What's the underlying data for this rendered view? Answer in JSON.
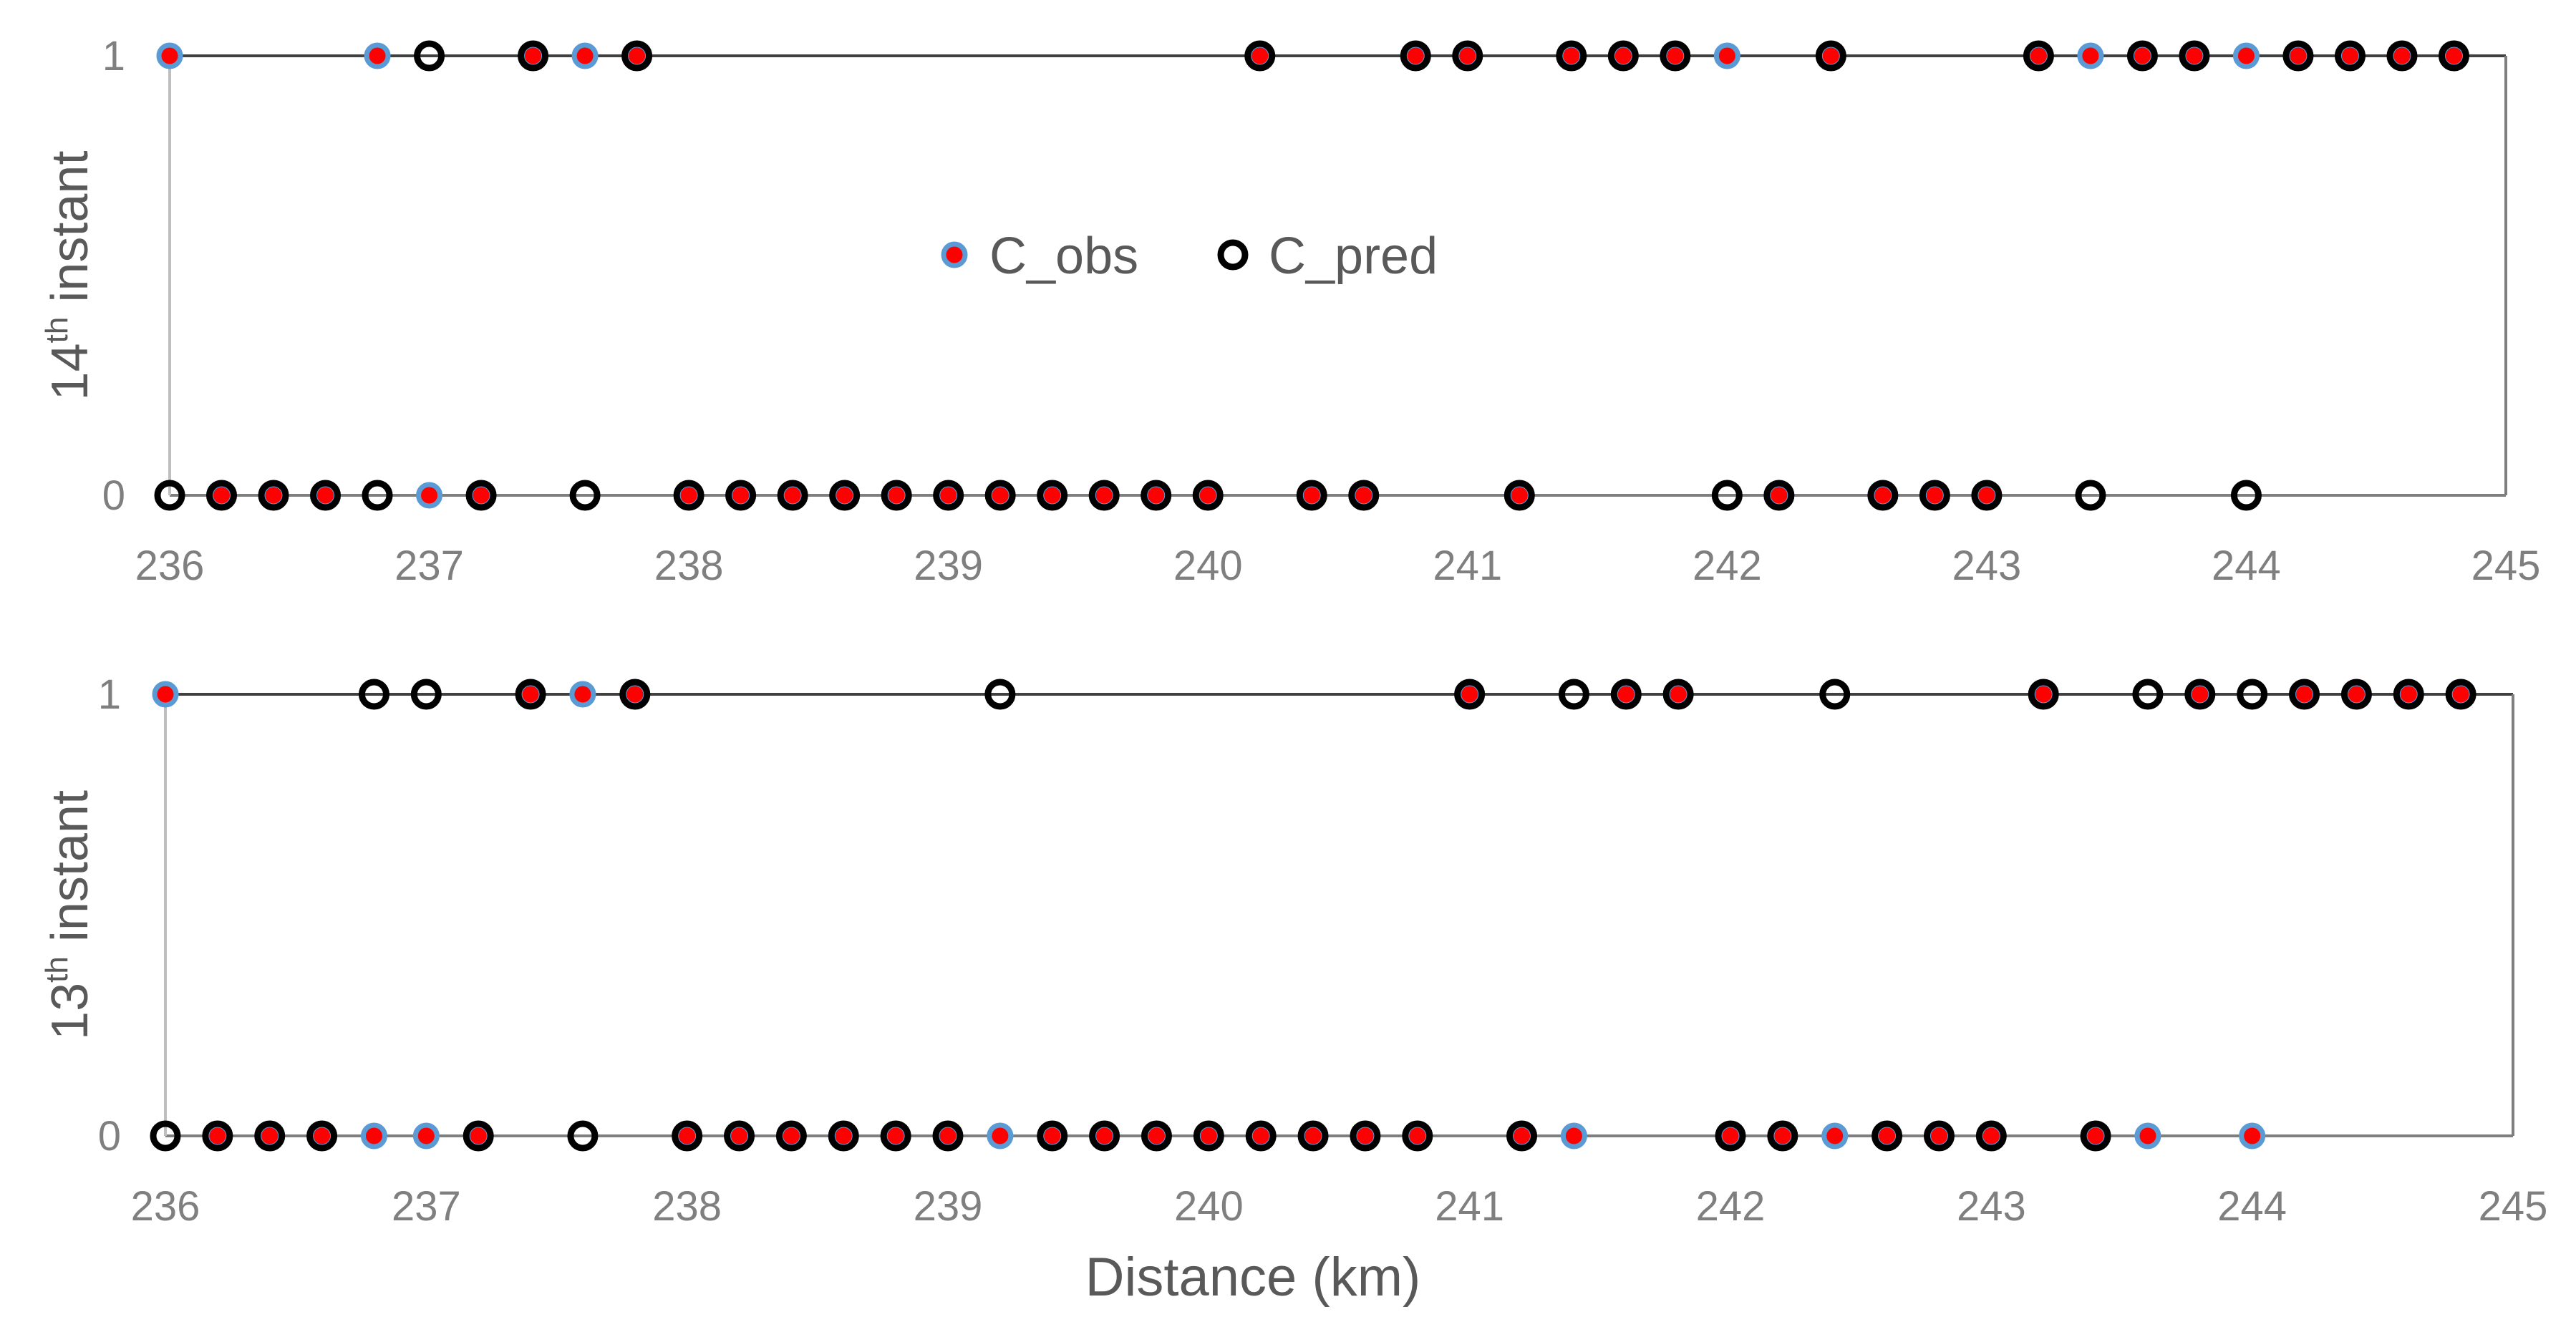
{
  "chart_data": [
    {
      "type": "scatter",
      "ylabel": {
        "prefix": "14",
        "sup": "th",
        "suffix": " instant"
      },
      "xlabel": "",
      "xlim": [
        236,
        245
      ],
      "ylim": [
        0,
        1
      ],
      "x_ticks": [
        "236",
        "237",
        "238",
        "239",
        "240",
        "241",
        "242",
        "243",
        "244",
        "245"
      ],
      "y_ticks": [
        "0",
        "1"
      ],
      "grid": false,
      "legend": {
        "position": "center",
        "entries": [
          "C_obs",
          "C_pred"
        ]
      },
      "series": [
        {
          "name": "C_obs",
          "x": [
            236.0,
            236.2,
            236.4,
            236.6,
            236.8,
            237.0,
            237.2,
            237.4,
            237.6,
            237.8,
            238.0,
            238.2,
            238.4,
            238.6,
            238.8,
            239.0,
            239.2,
            239.4,
            239.6,
            239.8,
            240.0,
            240.2,
            240.4,
            240.6,
            240.8,
            241.0,
            241.2,
            241.4,
            241.6,
            241.8,
            242.0,
            242.2,
            242.4,
            242.6,
            242.8,
            243.0,
            243.2,
            243.4,
            243.6,
            243.8,
            244.0,
            244.2,
            244.4,
            244.6,
            244.8
          ],
          "y": [
            1,
            0,
            0,
            0,
            1,
            0,
            0,
            1,
            1,
            1,
            0,
            0,
            0,
            0,
            0,
            0,
            0,
            0,
            0,
            0,
            0,
            1,
            0,
            0,
            1,
            1,
            0,
            1,
            1,
            1,
            1,
            0,
            1,
            0,
            0,
            0,
            1,
            1,
            1,
            1,
            1,
            1,
            1,
            1,
            1
          ]
        },
        {
          "name": "C_pred",
          "x": [
            236.0,
            236.2,
            236.4,
            236.6,
            236.8,
            237.0,
            237.2,
            237.4,
            237.6,
            237.8,
            238.0,
            238.2,
            238.4,
            238.6,
            238.8,
            239.0,
            239.2,
            239.4,
            239.6,
            239.8,
            240.0,
            240.2,
            240.4,
            240.6,
            240.8,
            241.0,
            241.2,
            241.4,
            241.6,
            241.8,
            242.0,
            242.2,
            242.4,
            242.6,
            242.8,
            243.0,
            243.2,
            243.4,
            243.6,
            243.8,
            244.0,
            244.2,
            244.4,
            244.6,
            244.8
          ],
          "y": [
            0,
            0,
            0,
            0,
            0,
            1,
            0,
            1,
            0,
            1,
            0,
            0,
            0,
            0,
            0,
            0,
            0,
            0,
            0,
            0,
            0,
            1,
            0,
            0,
            1,
            1,
            0,
            1,
            1,
            1,
            0,
            0,
            1,
            0,
            0,
            0,
            1,
            0,
            1,
            1,
            0,
            1,
            1,
            1,
            1
          ]
        }
      ]
    },
    {
      "type": "scatter",
      "ylabel": {
        "prefix": "13",
        "sup": "th",
        "suffix": " instant"
      },
      "xlabel": "Distance (km)",
      "xlim": [
        236,
        245
      ],
      "ylim": [
        0,
        1
      ],
      "x_ticks": [
        "236",
        "237",
        "238",
        "239",
        "240",
        "241",
        "242",
        "243",
        "244",
        "245"
      ],
      "y_ticks": [
        "0",
        "1"
      ],
      "grid": false,
      "series": [
        {
          "name": "C_obs",
          "x": [
            236.0,
            236.2,
            236.4,
            236.6,
            236.8,
            237.0,
            237.2,
            237.4,
            237.6,
            237.8,
            238.0,
            238.2,
            238.4,
            238.6,
            238.8,
            239.0,
            239.2,
            239.4,
            239.6,
            239.8,
            240.0,
            240.2,
            240.4,
            240.6,
            240.8,
            241.0,
            241.2,
            241.4,
            241.6,
            241.8,
            242.0,
            242.2,
            242.4,
            242.6,
            242.8,
            243.0,
            243.2,
            243.4,
            243.6,
            243.8,
            244.0,
            244.2,
            244.4,
            244.6,
            244.8
          ],
          "y": [
            1,
            0,
            0,
            0,
            0,
            0,
            0,
            1,
            1,
            1,
            0,
            0,
            0,
            0,
            0,
            0,
            0,
            0,
            0,
            0,
            0,
            0,
            0,
            0,
            0,
            1,
            0,
            0,
            1,
            1,
            0,
            0,
            0,
            0,
            0,
            0,
            1,
            0,
            0,
            1,
            0,
            1,
            1,
            1,
            1
          ]
        },
        {
          "name": "C_pred",
          "x": [
            236.0,
            236.2,
            236.4,
            236.6,
            236.8,
            237.0,
            237.2,
            237.4,
            237.6,
            237.8,
            238.0,
            238.2,
            238.4,
            238.6,
            238.8,
            239.0,
            239.2,
            239.4,
            239.6,
            239.8,
            240.0,
            240.2,
            240.4,
            240.6,
            240.8,
            241.0,
            241.2,
            241.4,
            241.6,
            241.8,
            242.0,
            242.2,
            242.4,
            242.6,
            242.8,
            243.0,
            243.2,
            243.4,
            243.6,
            243.8,
            244.0,
            244.2,
            244.4,
            244.6,
            244.8
          ],
          "y": [
            0,
            0,
            0,
            0,
            1,
            1,
            0,
            1,
            0,
            1,
            0,
            0,
            0,
            0,
            0,
            0,
            1,
            0,
            0,
            0,
            0,
            0,
            0,
            0,
            0,
            1,
            0,
            1,
            1,
            1,
            0,
            0,
            1,
            0,
            0,
            0,
            1,
            0,
            1,
            1,
            1,
            1,
            1,
            1,
            1
          ]
        }
      ]
    }
  ],
  "colors": {
    "obs_fill": "#ff0000",
    "obs_edge": "#5b9bd5",
    "pred_edge": "#000000",
    "axis": "#7f7f7f",
    "tick_text": "#7f7f7f",
    "label_text": "#595959"
  }
}
